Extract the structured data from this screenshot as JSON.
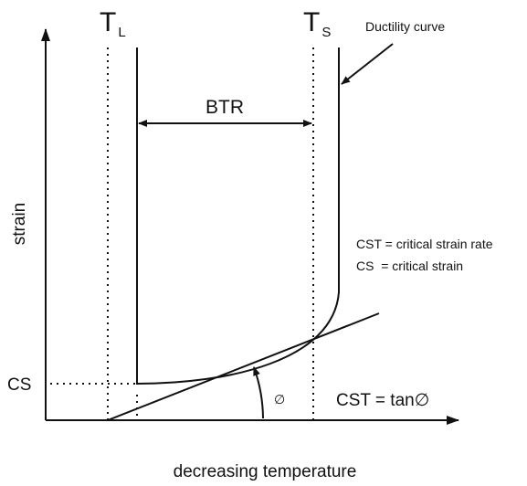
{
  "axes": {
    "y_label": "strain",
    "x_label": "decreasing temperature"
  },
  "liquidus": {
    "symbol": "T",
    "subscript": "L"
  },
  "solidus": {
    "symbol": "T",
    "subscript": "S"
  },
  "curve_label": "Ductility curve",
  "range_label": "BTR",
  "cs_label": "CS",
  "angle_label": "∅",
  "formula": "CST = tan∅",
  "legend": [
    "CST = critical strain rate",
    "CS  = critical strain"
  ]
}
